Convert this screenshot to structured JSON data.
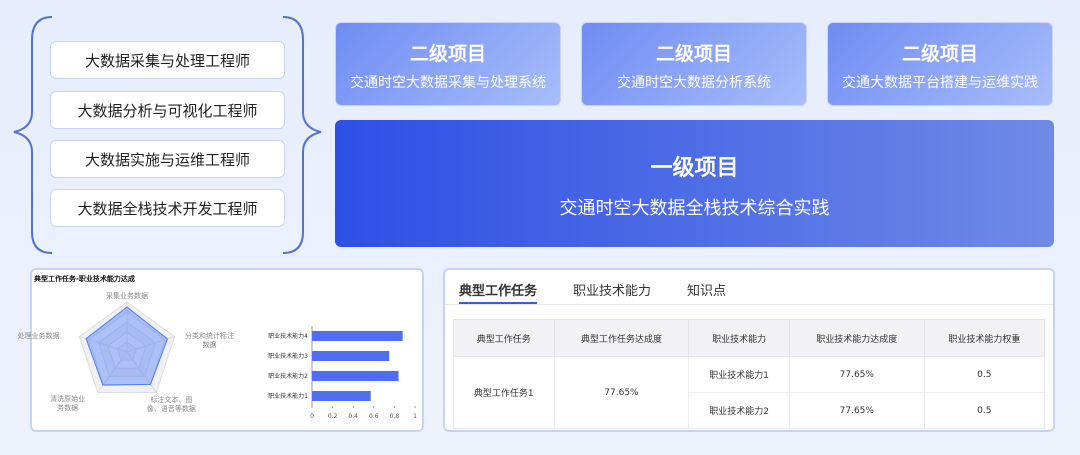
{
  "roles": [
    "大数据采集与处理工程师",
    "大数据分析与可视化工程师",
    "大数据实施与运维工程师",
    "大数据全栈技术开发工程师"
  ],
  "secondary": [
    {
      "level": "二级项目",
      "name": "交通时空大数据采集与处理系统"
    },
    {
      "level": "二级项目",
      "name": "交通时空大数据分析系统"
    },
    {
      "level": "二级项目",
      "name": "交通大数据平台搭建与运维实践"
    }
  ],
  "primary": {
    "level": "一级项目",
    "name": "交通时空大数据全栈技术综合实践"
  },
  "chart_panel": {
    "title": "典型工作任务-职业技术能力达成",
    "radar": {
      "type": "radar",
      "labels": [
        "采集业务数据",
        "分类和统计标注数据",
        "标注文本、图像、语音等数据",
        "清洗原始业务数据",
        "处理业务数据"
      ],
      "values": [
        0.9,
        0.85,
        0.8,
        0.82,
        0.86
      ],
      "rlim": [
        0,
        1
      ],
      "color": "#4f7cf6"
    },
    "bars": {
      "type": "bar",
      "orientation": "horizontal",
      "categories": [
        "职业技术能力4",
        "职业技术能力3",
        "职业技术能力2",
        "职业技术能力1"
      ],
      "values": [
        0.88,
        0.75,
        0.84,
        0.57
      ],
      "color": "#4f6ef0",
      "xlim": [
        0,
        1
      ],
      "xticks": [
        0,
        0.2,
        0.4,
        0.6,
        0.8,
        1
      ]
    }
  },
  "tabs": [
    "典型工作任务",
    "职业技术能力",
    "知识点"
  ],
  "table": {
    "header": [
      "典型工作任务",
      "典型工作任务达成度",
      "职业技术能力",
      "职业技术能力达成度",
      "职业技术能力权重"
    ],
    "rows": [
      {
        "task": "典型工作任务1",
        "task_rate": "77.65%",
        "abilities": [
          [
            "职业技术能力1",
            "77.65%",
            "0.5"
          ],
          [
            "职业技术能力2",
            "77.65%",
            "0.5"
          ]
        ]
      }
    ]
  }
}
